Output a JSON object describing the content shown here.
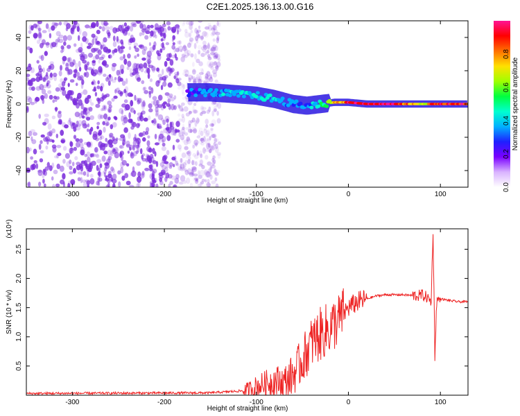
{
  "title": "C2E1.2025.136.13.00.G16",
  "colors": {
    "snr_line": "#ee2222",
    "scatter": "#7a2bdc",
    "colorbar": [
      "#ffffff",
      "#d9b3ff",
      "#7a00ff",
      "#1f1fff",
      "#00b0ff",
      "#00ffd0",
      "#00ff40",
      "#a0ff00",
      "#ffe000",
      "#ff7000",
      "#ff0000",
      "#ff1493"
    ]
  },
  "chart_data": [
    {
      "type": "heatmap",
      "name": "spectrogram",
      "xlabel": "Height of straight line (km)",
      "ylabel": "Frequency (Hz)",
      "xlim": [
        -350,
        130
      ],
      "ylim": [
        -50,
        50
      ],
      "x_ticks": [
        "-300",
        "-200",
        "-100",
        "0",
        "100"
      ],
      "y_ticks": [
        "-40",
        "-20",
        "0",
        "20",
        "40"
      ],
      "colorbar": {
        "label": "Normalized spectral amplitude",
        "range": [
          0,
          1
        ],
        "ticks": [
          "0.0",
          "0.2",
          "0.4",
          "0.6",
          "0.8"
        ]
      },
      "noise_region_km": [
        -350,
        -140
      ],
      "signal_track": {
        "x": [
          -175,
          -150,
          -125,
          -100,
          -80,
          -60,
          -45,
          -30,
          -15,
          0,
          20,
          50,
          85,
          90,
          110,
          130
        ],
        "freq": [
          7,
          7,
          6,
          5,
          3,
          0,
          -1,
          0,
          1,
          1,
          0,
          0,
          0,
          0,
          0,
          0
        ],
        "amplitude": [
          0.25,
          0.35,
          0.4,
          0.45,
          0.4,
          0.35,
          0.3,
          0.5,
          0.7,
          0.9,
          0.95,
          0.95,
          0.6,
          0.9,
          0.9,
          0.9
        ]
      }
    },
    {
      "type": "line",
      "name": "snr",
      "xlabel": "Height of straight line (km)",
      "ylabel": "SNR (10 * v/v)",
      "scale_label": "(x10⁴)",
      "xlim": [
        -350,
        130
      ],
      "ylim": [
        0,
        2.85
      ],
      "x_ticks": [
        "-300",
        "-200",
        "-100",
        "0",
        "100"
      ],
      "y_ticks": [
        "0.5",
        "1.0",
        "1.5",
        "2.0",
        "2.5"
      ],
      "series": [
        {
          "x": [
            -350,
            -150,
            -110,
            -100,
            -90,
            -80,
            -70,
            -60,
            -50,
            -45,
            -40,
            -30,
            -20,
            -10,
            0,
            10,
            20,
            30,
            40,
            60,
            75,
            80,
            85,
            90,
            92,
            94,
            96,
            100,
            110,
            120,
            130
          ],
          "y": [
            0.03,
            0.04,
            0.08,
            0.15,
            0.2,
            0.25,
            0.2,
            0.35,
            0.6,
            0.75,
            0.9,
            1.05,
            1.15,
            1.3,
            1.5,
            1.6,
            1.65,
            1.7,
            1.72,
            1.72,
            1.7,
            1.72,
            1.68,
            1.6,
            2.85,
            0.68,
            1.62,
            1.65,
            1.62,
            1.6,
            1.6
          ]
        }
      ]
    }
  ]
}
